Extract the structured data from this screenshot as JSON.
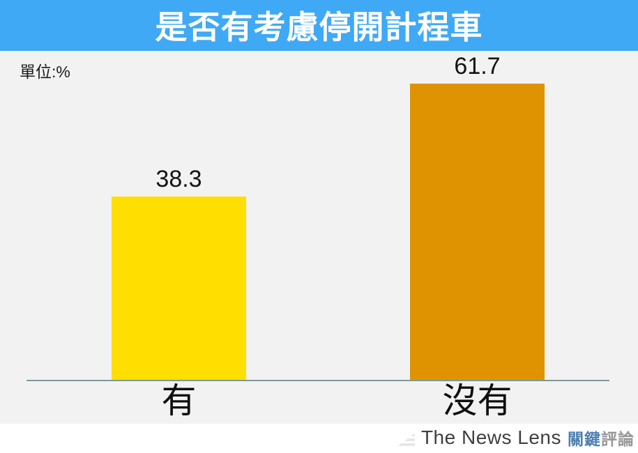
{
  "title": "是否有考慮停開計程車",
  "unit_label": "單位:%",
  "chart_data": {
    "type": "bar",
    "title": "是否有考慮停開計程車",
    "unit": "%",
    "categories": [
      "有",
      "沒有"
    ],
    "values": [
      38.3,
      61.7
    ],
    "value_labels": [
      "38.3",
      "61.7"
    ],
    "bar_colors": [
      "#FFDE00",
      "#DF9300"
    ],
    "ylim": [
      0,
      70
    ],
    "grid": false,
    "legend": false
  },
  "colors": {
    "header_background": "#3FA9F5",
    "plot_background": "#F2F2F2",
    "axis_line": "#7F9898",
    "bar_yes": "#FFDE00",
    "bar_no": "#DF9300",
    "title_text": "#FFFFFF",
    "label_text": "#111111"
  },
  "footer": {
    "brand_en": "The News Lens",
    "brand_zh_primary": "關鍵",
    "brand_zh_secondary": "評論"
  }
}
